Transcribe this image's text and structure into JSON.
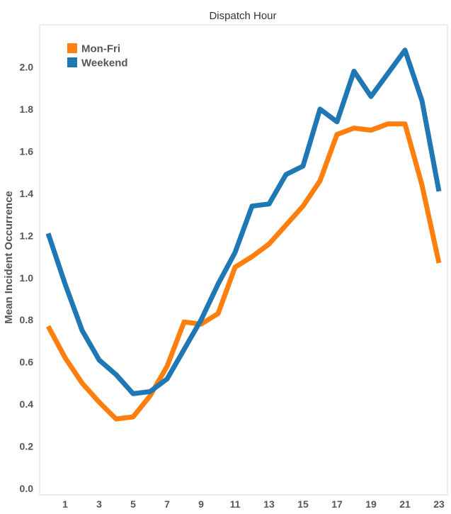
{
  "chart_data": {
    "type": "line",
    "title": "Dispatch Hour",
    "xlabel": "",
    "ylabel": "Mean Incident Occurrence",
    "xlim": [
      -0.5,
      23.5
    ],
    "ylim": [
      -0.03,
      2.2
    ],
    "x": [
      0,
      1,
      2,
      3,
      4,
      5,
      6,
      7,
      8,
      9,
      10,
      11,
      12,
      13,
      14,
      15,
      16,
      17,
      18,
      19,
      20,
      21,
      22,
      23
    ],
    "x_ticks": [
      1,
      3,
      5,
      7,
      9,
      11,
      13,
      15,
      17,
      19,
      21,
      23
    ],
    "y_ticks": [
      "0.0",
      "0.2",
      "0.4",
      "0.6",
      "0.8",
      "1.0",
      "1.2",
      "1.4",
      "1.6",
      "1.8",
      "2.0"
    ],
    "grid": false,
    "legend_position": "top-left",
    "series": [
      {
        "name": "Mon-Fri",
        "color": "#ff7f0e",
        "values": [
          0.77,
          0.62,
          0.5,
          0.41,
          0.33,
          0.34,
          0.44,
          0.58,
          0.79,
          0.78,
          0.83,
          1.05,
          1.1,
          1.16,
          1.25,
          1.34,
          1.46,
          1.68,
          1.71,
          1.7,
          1.73,
          1.73,
          1.44,
          1.07
        ]
      },
      {
        "name": "Weekend",
        "color": "#1f77b4",
        "values": [
          1.21,
          0.97,
          0.75,
          0.61,
          0.54,
          0.45,
          0.46,
          0.52,
          0.66,
          0.8,
          0.97,
          1.12,
          1.34,
          1.35,
          1.49,
          1.53,
          1.8,
          1.74,
          1.98,
          1.86,
          1.97,
          2.08,
          1.84,
          1.41
        ]
      }
    ]
  }
}
